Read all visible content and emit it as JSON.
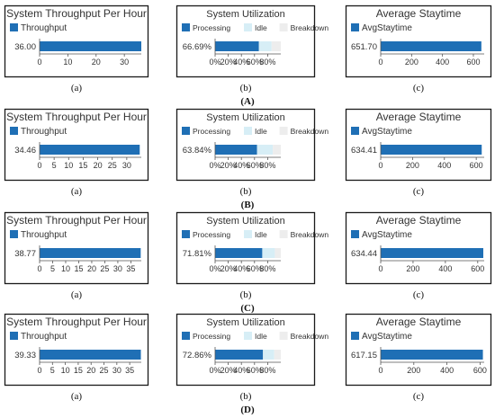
{
  "colors": {
    "processing": "#1f6fb5",
    "idle": "#d7eef6",
    "breakdown": "#ededed",
    "panel_border": "#1a1a1a",
    "axis": "#555555",
    "tick_text": "#333333"
  },
  "rows": [
    {
      "label": "(A)",
      "panels": [
        {
          "sublabel": "(a)"
        },
        {
          "sublabel": "(b)"
        },
        {
          "sublabel": "(c)"
        }
      ]
    },
    {
      "label": "(B)",
      "panels": [
        {
          "sublabel": "(a)"
        },
        {
          "sublabel": "(b)"
        },
        {
          "sublabel": "(c)"
        }
      ]
    },
    {
      "label": "(C)",
      "panels": [
        {
          "sublabel": "(a)"
        },
        {
          "sublabel": "(b)"
        },
        {
          "sublabel": "(c)"
        }
      ]
    },
    {
      "label": "(D)",
      "panels": [
        {
          "sublabel": "(a)"
        },
        {
          "sublabel": "(b)"
        },
        {
          "sublabel": "(c)"
        }
      ]
    }
  ],
  "chart_data": [
    {
      "type": "bar",
      "orientation": "horizontal",
      "title": "System Throughput Per Hour",
      "legend": [
        "Throughput"
      ],
      "value_label": "36.00",
      "values": [
        36.0
      ],
      "xlim": [
        0,
        36
      ],
      "xticks": [
        "0",
        "10",
        "20",
        "30"
      ]
    },
    {
      "type": "bar",
      "orientation": "horizontal",
      "stacked": true,
      "title": "System Utilization",
      "legend": [
        "Processing",
        "Idle",
        "Breakdown"
      ],
      "value_label": "66.69%",
      "values": [
        66.69,
        19.31,
        14.0
      ],
      "xlim": [
        0,
        100
      ],
      "xticks": [
        "0%",
        "20%",
        "40%",
        "60%",
        "80%"
      ]
    },
    {
      "type": "bar",
      "orientation": "horizontal",
      "title": "Average Staytime",
      "legend": [
        "AvgStaytime"
      ],
      "value_label": "651.70",
      "values": [
        651.7
      ],
      "xlim": [
        0,
        670
      ],
      "xticks": [
        "0",
        "200",
        "400",
        "600"
      ]
    },
    {
      "type": "bar",
      "orientation": "horizontal",
      "title": "System Throughput Per Hour",
      "legend": [
        "Throughput"
      ],
      "value_label": "34.46",
      "values": [
        34.46
      ],
      "xlim": [
        0,
        35
      ],
      "xticks": [
        "0",
        "5",
        "10",
        "15",
        "20",
        "25",
        "30"
      ]
    },
    {
      "type": "bar",
      "orientation": "horizontal",
      "stacked": true,
      "title": "System Utilization",
      "legend": [
        "Processing",
        "Idle",
        "Breakdown"
      ],
      "value_label": "63.84%",
      "values": [
        63.84,
        24.0,
        12.16
      ],
      "xlim": [
        0,
        100
      ],
      "xticks": [
        "0%",
        "20%",
        "40%",
        "60%",
        "80%"
      ]
    },
    {
      "type": "bar",
      "orientation": "horizontal",
      "title": "Average Staytime",
      "legend": [
        "AvgStaytime"
      ],
      "value_label": "634.41",
      "values": [
        634.41
      ],
      "xlim": [
        0,
        650
      ],
      "xticks": [
        "0",
        "200",
        "400",
        "600"
      ]
    },
    {
      "type": "bar",
      "orientation": "horizontal",
      "title": "System Throughput Per Hour",
      "legend": [
        "Throughput"
      ],
      "value_label": "38.77",
      "values": [
        38.77
      ],
      "xlim": [
        0,
        39
      ],
      "xticks": [
        "0",
        "5",
        "10",
        "15",
        "20",
        "25",
        "30",
        "35"
      ]
    },
    {
      "type": "bar",
      "orientation": "horizontal",
      "stacked": true,
      "title": "System Utilization",
      "legend": [
        "Processing",
        "Idle",
        "Breakdown"
      ],
      "value_label": "71.81%",
      "values": [
        71.81,
        19.19,
        9.0
      ],
      "xlim": [
        0,
        100
      ],
      "xticks": [
        "0%",
        "20%",
        "40%",
        "60%",
        "80%"
      ]
    },
    {
      "type": "bar",
      "orientation": "horizontal",
      "title": "Average Staytime",
      "legend": [
        "AvgStaytime"
      ],
      "value_label": "634.44",
      "values": [
        634.44
      ],
      "xlim": [
        0,
        640
      ],
      "xticks": [
        "0",
        "200",
        "400",
        "600"
      ]
    },
    {
      "type": "bar",
      "orientation": "horizontal",
      "title": "System Throughput Per Hour",
      "legend": [
        "Throughput"
      ],
      "value_label": "39.33",
      "values": [
        39.33
      ],
      "xlim": [
        0,
        39.5
      ],
      "xticks": [
        "0",
        "5",
        "10",
        "15",
        "20",
        "25",
        "30",
        "35"
      ]
    },
    {
      "type": "bar",
      "orientation": "horizontal",
      "stacked": true,
      "title": "System Utilization",
      "legend": [
        "Processing",
        "Idle",
        "Breakdown"
      ],
      "value_label": "72.86%",
      "values": [
        72.86,
        17.14,
        10.0
      ],
      "xlim": [
        0,
        100
      ],
      "xticks": [
        "0%",
        "20%",
        "40%",
        "60%",
        "80%"
      ]
    },
    {
      "type": "bar",
      "orientation": "horizontal",
      "title": "Average Staytime",
      "legend": [
        "AvgStaytime"
      ],
      "value_label": "617.15",
      "values": [
        617.15
      ],
      "xlim": [
        0,
        625
      ],
      "xticks": [
        "0",
        "200",
        "400",
        "600"
      ]
    }
  ]
}
